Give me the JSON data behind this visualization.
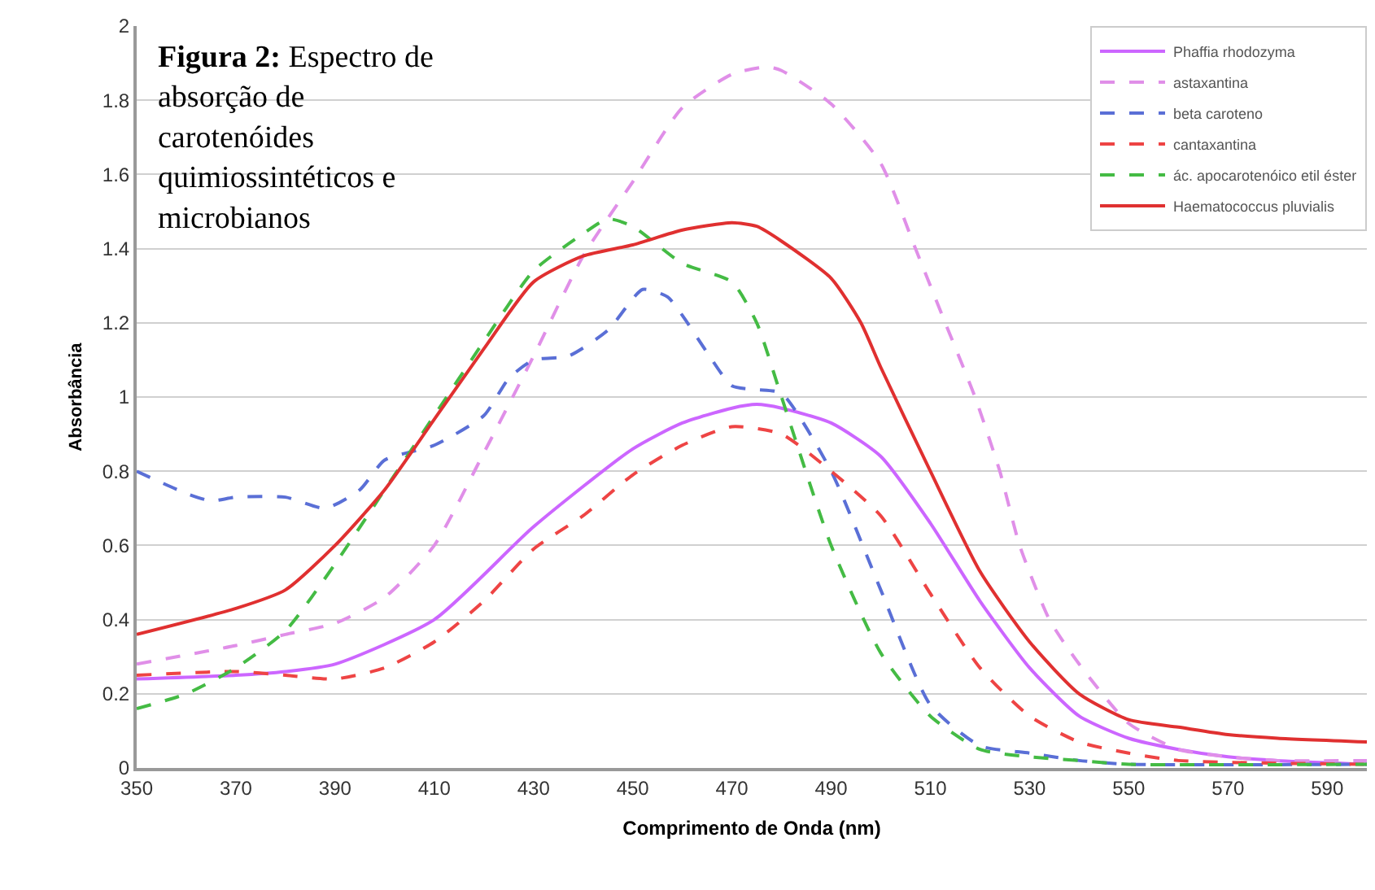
{
  "chart_data": {
    "type": "line",
    "title": "Figura 2: Espectro de absorção de carotenóides quimiossintéticos e microbianos",
    "xlabel": "Comprimento de Onda (nm)",
    "ylabel": "Absorbância",
    "xlim": [
      350,
      598
    ],
    "xticks": [
      350,
      370,
      390,
      410,
      430,
      450,
      470,
      490,
      510,
      530,
      550,
      570,
      590
    ],
    "ylim": [
      0,
      2
    ],
    "yticks": [
      0,
      {
        "value": 0.2,
        "label": "0.2"
      },
      {
        "value": 0.4,
        "label": "0.4"
      },
      {
        "value": 0.6,
        "label": "0.6"
      },
      {
        "value": 0.8,
        "label": "0.8"
      },
      1,
      {
        "value": 1.2,
        "label": "1.2"
      },
      {
        "value": 1.4,
        "label": "1.4"
      },
      {
        "value": 1.6,
        "label": "1.6"
      },
      {
        "value": 1.8,
        "label": "1.8"
      },
      2
    ],
    "grid": "y",
    "legend": "top right",
    "marker": "none",
    "series": [
      {
        "name": "Phaffia rhodozyma",
        "color": "#cc66ff",
        "line_style": "solid",
        "x": [
          350,
          370,
          380,
          390,
          410,
          430,
          450,
          460,
          470,
          475,
          480,
          490,
          500,
          510,
          520,
          530,
          540,
          550,
          560,
          570,
          580,
          598
        ],
        "values": [
          0.24,
          0.25,
          0.26,
          0.28,
          0.4,
          0.65,
          0.86,
          0.93,
          0.97,
          0.98,
          0.97,
          0.93,
          0.84,
          0.66,
          0.45,
          0.27,
          0.14,
          0.08,
          0.05,
          0.03,
          0.02,
          0.01
        ]
      },
      {
        "name": "astaxantina",
        "color": "#e08fe8",
        "line_style": "dashed",
        "x": [
          350,
          370,
          380,
          390,
          400,
          410,
          420,
          430,
          440,
          450,
          460,
          470,
          477,
          480,
          490,
          500,
          507,
          513,
          519,
          524,
          528,
          534,
          540,
          550,
          560,
          570,
          580,
          598
        ],
        "values": [
          0.28,
          0.33,
          0.36,
          0.39,
          0.46,
          0.6,
          0.85,
          1.11,
          1.38,
          1.58,
          1.78,
          1.87,
          1.89,
          1.88,
          1.79,
          1.63,
          1.4,
          1.2,
          1.0,
          0.8,
          0.6,
          0.4,
          0.28,
          0.12,
          0.05,
          0.03,
          0.02,
          0.02
        ]
      },
      {
        "name": "beta caroteno",
        "color": "#5a6fd6",
        "line_style": "dashed",
        "x": [
          350,
          360,
          365,
          370,
          380,
          388,
          395,
          400,
          410,
          420,
          425,
          430,
          437,
          445,
          452,
          457,
          460,
          465,
          470,
          475,
          480,
          490,
          500,
          510,
          520,
          530,
          540,
          550,
          598
        ],
        "values": [
          0.8,
          0.74,
          0.72,
          0.73,
          0.73,
          0.7,
          0.75,
          0.83,
          0.87,
          0.95,
          1.05,
          1.1,
          1.11,
          1.18,
          1.29,
          1.27,
          1.22,
          1.12,
          1.03,
          1.02,
          1.01,
          0.8,
          0.48,
          0.17,
          0.06,
          0.04,
          0.02,
          0.01,
          0.01
        ]
      },
      {
        "name": "cantaxantina",
        "color": "#ee4444",
        "line_style": "dashed",
        "x": [
          350,
          370,
          380,
          390,
          400,
          410,
          420,
          430,
          440,
          450,
          460,
          470,
          480,
          490,
          500,
          510,
          520,
          530,
          540,
          550,
          560,
          598
        ],
        "values": [
          0.25,
          0.26,
          0.25,
          0.24,
          0.27,
          0.34,
          0.45,
          0.59,
          0.68,
          0.79,
          0.87,
          0.92,
          0.9,
          0.8,
          0.68,
          0.47,
          0.27,
          0.14,
          0.07,
          0.04,
          0.02,
          0.01
        ]
      },
      {
        "name": "ác. apocarotenóico etil éster",
        "color": "#44bb44",
        "line_style": "dashed",
        "x": [
          350,
          360,
          370,
          380,
          390,
          400,
          410,
          420,
          430,
          440,
          445,
          450,
          460,
          470,
          475,
          480,
          490,
          500,
          510,
          520,
          530,
          540,
          550,
          598
        ],
        "values": [
          0.16,
          0.2,
          0.27,
          0.37,
          0.55,
          0.75,
          0.95,
          1.15,
          1.34,
          1.44,
          1.48,
          1.46,
          1.36,
          1.31,
          1.2,
          1.0,
          0.6,
          0.31,
          0.14,
          0.05,
          0.03,
          0.02,
          0.01,
          0.01
        ]
      },
      {
        "name": "Haematococcus pluvialis",
        "color": "#e03030",
        "line_style": "solid",
        "x": [
          350,
          370,
          380,
          390,
          400,
          410,
          420,
          430,
          440,
          450,
          460,
          470,
          475,
          480,
          490,
          496,
          500,
          510,
          520,
          530,
          540,
          550,
          560,
          570,
          580,
          598
        ],
        "values": [
          0.36,
          0.43,
          0.48,
          0.6,
          0.75,
          0.94,
          1.13,
          1.31,
          1.38,
          1.41,
          1.45,
          1.47,
          1.46,
          1.42,
          1.32,
          1.2,
          1.08,
          0.8,
          0.53,
          0.34,
          0.2,
          0.13,
          0.11,
          0.09,
          0.08,
          0.07
        ]
      }
    ]
  }
}
